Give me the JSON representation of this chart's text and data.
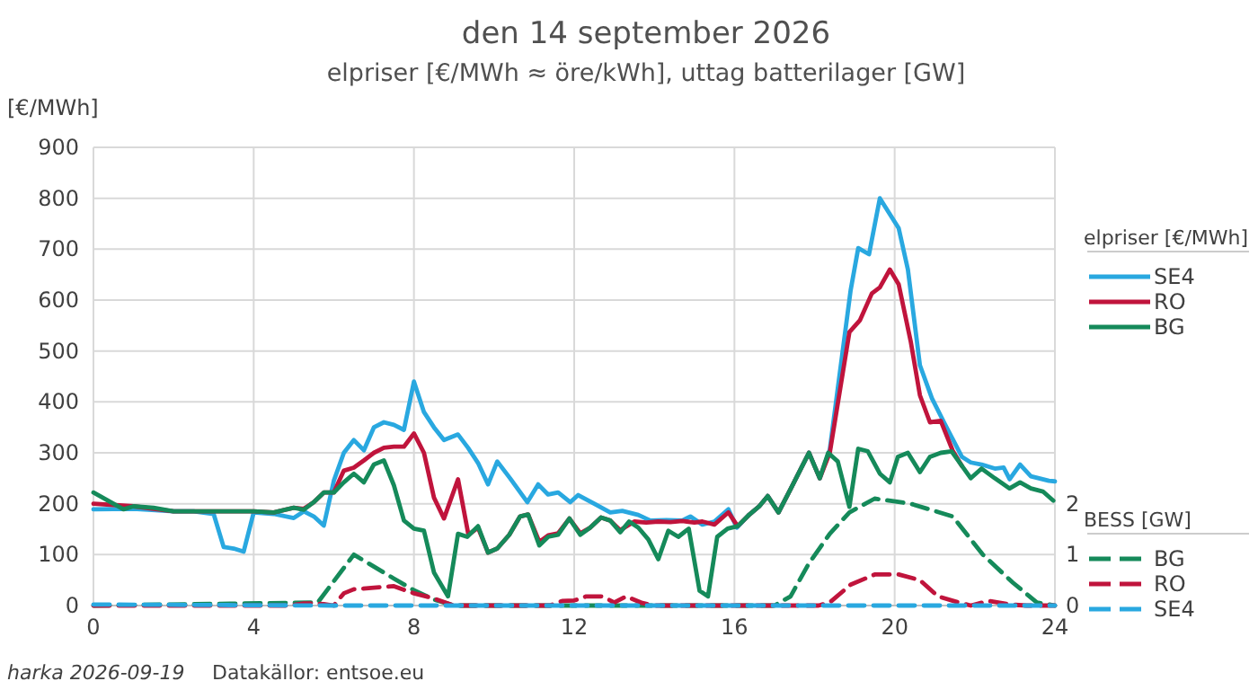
{
  "chart_data": {
    "type": "line",
    "title": "den 14 september 2026",
    "subtitle": "elpriser [€/MWh ≈ öre/kWh], uttag batterilager [GW]",
    "ylabel": "[€/MWh]",
    "y2label": "BESS [GW]",
    "legend_title": "elpriser [€/MWh]",
    "xlim": [
      0,
      24
    ],
    "xticks": [
      0,
      4,
      8,
      12,
      16,
      20,
      24
    ],
    "ylim": [
      0,
      900
    ],
    "yticks": [
      0,
      100,
      200,
      300,
      400,
      500,
      600,
      700,
      800,
      900
    ],
    "y2lim": [
      0,
      9
    ],
    "y2ticks": [
      0,
      1,
      2
    ],
    "grid": true,
    "legend": "right",
    "line_style": "solid",
    "series": [
      {
        "name": "SE4",
        "color": "#29a8e0",
        "x": [
          0,
          1,
          2,
          2.5,
          3,
          3.25,
          3.5,
          3.75,
          4,
          4.5,
          5,
          5.25,
          5.5,
          5.75,
          6,
          6.25,
          6.5,
          6.75,
          7,
          7.25,
          7.5,
          7.75,
          8,
          8.25,
          8.5,
          8.75,
          9.1,
          9.35,
          9.6,
          9.85,
          10.08,
          10.4,
          10.83,
          11.1,
          11.35,
          11.6,
          11.9,
          12.1,
          12.5,
          12.9,
          13.2,
          13.6,
          13.9,
          14.3,
          14.7,
          14.9,
          15.2,
          15.5,
          15.85,
          16.06,
          16.35,
          16.62,
          16.83,
          17.1,
          17.41,
          17.86,
          18.13,
          18.38,
          18.9,
          19.09,
          19.36,
          19.63,
          20.1,
          20.33,
          20.63,
          20.93,
          21.23,
          21.68,
          21.9,
          22.17,
          22.5,
          22.72,
          22.87,
          23.13,
          23.4,
          23.85,
          24
        ],
        "values": [
          189,
          190,
          185,
          185,
          180,
          115,
          112,
          106,
          183,
          180,
          172,
          185,
          175,
          157,
          245,
          300,
          325,
          305,
          350,
          360,
          355,
          345,
          440,
          380,
          350,
          325,
          336,
          310,
          280,
          238,
          283,
          250,
          203,
          238,
          218,
          222,
          203,
          217,
          200,
          183,
          186,
          178,
          167,
          168,
          167,
          175,
          159,
          165,
          189,
          153,
          177,
          195,
          215,
          183,
          230,
          300,
          250,
          306,
          619,
          702,
          690,
          800,
          741,
          660,
          472,
          407,
          360,
          292,
          281,
          277,
          269,
          271,
          248,
          277,
          254,
          245,
          244
        ]
      },
      {
        "name": "RO",
        "color": "#c0143c",
        "x": [
          0,
          1,
          2,
          3,
          4,
          4.5,
          5,
          5.25,
          5.5,
          5.75,
          6,
          6.25,
          6.5,
          6.75,
          7,
          7.25,
          7.5,
          7.75,
          8,
          8.25,
          8.5,
          8.75,
          9.1,
          9.36,
          9.6,
          9.85,
          10.08,
          10.38,
          10.65,
          10.85,
          11.13,
          11.35,
          11.6,
          11.88,
          12.15,
          12.4,
          12.67,
          12.9,
          13.15,
          13.5,
          13.8,
          14.1,
          14.4,
          14.7,
          15,
          15.2,
          15.5,
          15.85,
          16.08,
          16.35,
          16.62,
          16.83,
          17.1,
          17.41,
          17.86,
          18.13,
          18.38,
          18.87,
          19.13,
          19.43,
          19.63,
          19.88,
          20.1,
          20.4,
          20.63,
          20.88,
          21.15,
          21.45,
          21.68
        ],
        "values": [
          200,
          195,
          185,
          185,
          185,
          183,
          192,
          190,
          203,
          222,
          222,
          265,
          271,
          285,
          300,
          310,
          312,
          312,
          338,
          300,
          212,
          171,
          248,
          139,
          153,
          104,
          112,
          139,
          175,
          179,
          125,
          138,
          142,
          171,
          142,
          153,
          173,
          167,
          148,
          165,
          163,
          165,
          164,
          166,
          163,
          165,
          159,
          183,
          156,
          177,
          195,
          215,
          183,
          230,
          300,
          250,
          300,
          537,
          560,
          613,
          625,
          660,
          631,
          519,
          413,
          360,
          363,
          304,
          274
        ]
      },
      {
        "name": "BG",
        "color": "#158a5a",
        "x": [
          0,
          0.5,
          0.75,
          1,
          1.5,
          2,
          3,
          4,
          4.5,
          5,
          5.25,
          5.5,
          5.75,
          6,
          6.25,
          6.5,
          6.75,
          7,
          7.25,
          7.5,
          7.75,
          8,
          8.25,
          8.5,
          8.85,
          9.1,
          9.33,
          9.6,
          9.85,
          10.08,
          10.38,
          10.65,
          10.85,
          11.13,
          11.35,
          11.6,
          11.88,
          12.15,
          12.4,
          12.67,
          12.9,
          13.15,
          13.37,
          13.6,
          13.85,
          14.1,
          14.35,
          14.6,
          14.86,
          15.13,
          15.34,
          15.57,
          15.83,
          16.08,
          16.35,
          16.62,
          16.83,
          17.1,
          17.41,
          17.86,
          18.13,
          18.34,
          18.58,
          18.87,
          19.09,
          19.33,
          19.63,
          19.88,
          20.08,
          20.33,
          20.63,
          20.88,
          21.15,
          21.42,
          21.68,
          21.9,
          22.17,
          22.5,
          22.87,
          23.13,
          23.4,
          23.7,
          23.96
        ],
        "values": [
          222,
          200,
          189,
          195,
          192,
          185,
          185,
          185,
          183,
          192,
          188,
          203,
          222,
          222,
          242,
          259,
          242,
          277,
          285,
          236,
          167,
          151,
          147,
          65,
          18,
          141,
          135,
          156,
          104,
          112,
          139,
          175,
          179,
          118,
          135,
          139,
          171,
          139,
          153,
          173,
          167,
          144,
          165,
          153,
          130,
          91,
          147,
          135,
          151,
          29,
          18,
          135,
          151,
          156,
          177,
          195,
          215,
          183,
          230,
          300,
          250,
          300,
          283,
          194,
          308,
          303,
          259,
          242,
          292,
          300,
          262,
          292,
          300,
          303,
          274,
          250,
          269,
          250,
          230,
          242,
          230,
          224,
          206
        ]
      },
      {
        "name": "BG",
        "color": "#158a5a",
        "axis": "y2",
        "line_style": "dashed",
        "x": [
          0,
          5.6,
          6.5,
          7.5,
          8,
          8.5,
          9,
          17,
          17.4,
          17.86,
          18.38,
          18.87,
          19.5,
          20.4,
          21.45,
          22.2,
          22.95,
          23.55,
          24
        ],
        "values": [
          0,
          0.06,
          1,
          0.53,
          0.3,
          0.12,
          0,
          0,
          0.18,
          0.83,
          1.41,
          1.83,
          2.1,
          2,
          1.75,
          1,
          0.45,
          0.06,
          0
        ]
      },
      {
        "name": "RO",
        "color": "#c0143c",
        "axis": "y2",
        "line_style": "dashed",
        "x": [
          0,
          4.9,
          5.25,
          5.5,
          5.75,
          6,
          6.25,
          6.5,
          7,
          7.5,
          8,
          8.5,
          9,
          11.4,
          11.7,
          12,
          12.3,
          12.7,
          13,
          13.3,
          13.7,
          14,
          18.1,
          18.38,
          18.9,
          19.5,
          20.1,
          20.63,
          21.08,
          21.6,
          21.9,
          22.35,
          22.87,
          23.3,
          24
        ],
        "values": [
          0,
          0,
          0.04,
          0.04,
          0.03,
          0,
          0.24,
          0.32,
          0.35,
          0.38,
          0.24,
          0.14,
          0,
          0,
          0.09,
          0.1,
          0.18,
          0.18,
          0.06,
          0.18,
          0.05,
          0,
          0,
          0.06,
          0.41,
          0.61,
          0.61,
          0.5,
          0.18,
          0.06,
          0,
          0.09,
          0.02,
          0,
          0
        ]
      },
      {
        "name": "SE4",
        "color": "#29a8e0",
        "axis": "y2",
        "line_style": "dashed",
        "x": [
          0,
          6,
          12,
          18,
          24
        ],
        "values": [
          0.02,
          0,
          0,
          0,
          0
        ]
      }
    ],
    "annotations": [
      "harka 2026-09-19",
      "Datakällor: entsoe.eu"
    ]
  }
}
